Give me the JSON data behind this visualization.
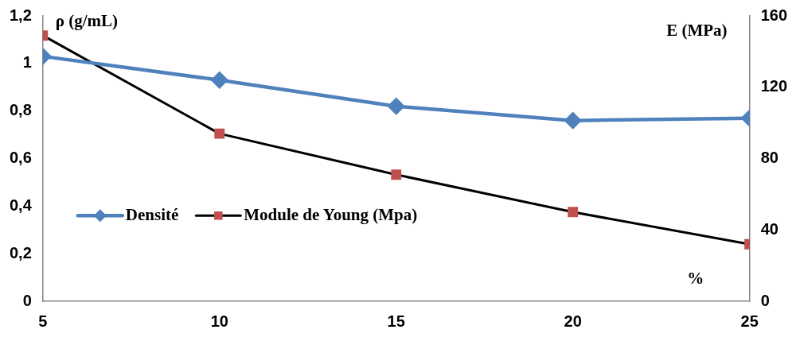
{
  "chart_data": {
    "type": "line",
    "xlabel": "%",
    "ylabel": "ρ (g/mL)",
    "y2label": "E (MPa)",
    "x": [
      5,
      10,
      15,
      20,
      25
    ],
    "xlim": [
      5,
      25
    ],
    "xticks": [
      5,
      10,
      15,
      20,
      25
    ],
    "ylim": [
      0,
      1.2
    ],
    "yticks": [
      {
        "value": 0,
        "label": "0"
      },
      {
        "value": 0.2,
        "label": "0,2"
      },
      {
        "value": 0.4,
        "label": "0,4"
      },
      {
        "value": 0.6,
        "label": "0,6"
      },
      {
        "value": 0.8,
        "label": "0,8"
      },
      {
        "value": 1,
        "label": "1"
      },
      {
        "value": 1.2,
        "label": "1,2"
      }
    ],
    "y2lim": [
      0,
      160
    ],
    "y2ticks": [
      0,
      40,
      80,
      120,
      160
    ],
    "grid": false,
    "legend": "left",
    "series": [
      {
        "name": "Densité",
        "color": "#4f81bd",
        "marker": "diamond",
        "values": [
          1.03,
          0.93,
          0.82,
          0.76,
          0.77
        ]
      },
      {
        "name": "Module de Young (Mpa)",
        "color": "#000000",
        "colors": [
          "#c0504d",
          "#c0504d",
          "#c0504d",
          "#c0504d",
          "#c0504d"
        ],
        "marker": "square",
        "axis": "y2",
        "values": [
          149,
          94,
          71,
          50,
          32
        ]
      }
    ]
  }
}
